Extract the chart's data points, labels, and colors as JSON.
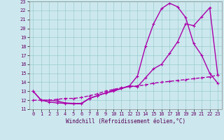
{
  "xlabel": "Windchill (Refroidissement éolien,°C)",
  "bg_color": "#cce8ee",
  "line_color": "#aa00aa",
  "grid_color": "#99cccc",
  "xlim": [
    -0.5,
    23.5
  ],
  "ylim": [
    11,
    23
  ],
  "xticks": [
    0,
    1,
    2,
    3,
    4,
    5,
    6,
    7,
    8,
    9,
    10,
    11,
    12,
    13,
    14,
    15,
    16,
    17,
    18,
    19,
    20,
    21,
    22,
    23
  ],
  "yticks": [
    11,
    12,
    13,
    14,
    15,
    16,
    17,
    18,
    19,
    20,
    21,
    22,
    23
  ],
  "line1_x": [
    0,
    1,
    2,
    3,
    4,
    5,
    6,
    7,
    8,
    9,
    10,
    11,
    12,
    13,
    14,
    15,
    16,
    17,
    18,
    19,
    20,
    21,
    22,
    23
  ],
  "line1_y": [
    13.0,
    12.0,
    11.8,
    11.7,
    11.65,
    11.6,
    11.6,
    12.2,
    12.5,
    12.8,
    13.1,
    13.3,
    13.6,
    14.7,
    18.0,
    20.5,
    22.2,
    22.8,
    22.4,
    21.2,
    18.3,
    17.0,
    15.0,
    13.9
  ],
  "line2_x": [
    0,
    1,
    2,
    3,
    4,
    5,
    6,
    7,
    8,
    9,
    10,
    11,
    12,
    13,
    14,
    15,
    16,
    17,
    18,
    19,
    20,
    21,
    22,
    23
  ],
  "line2_y": [
    13.0,
    12.0,
    12.0,
    11.9,
    11.7,
    11.65,
    11.65,
    12.2,
    12.5,
    12.8,
    13.0,
    13.3,
    13.6,
    13.5,
    14.5,
    15.5,
    16.0,
    17.2,
    18.5,
    20.5,
    20.3,
    21.3,
    22.3,
    14.8
  ],
  "line3_x": [
    0,
    1,
    2,
    3,
    4,
    5,
    6,
    7,
    8,
    9,
    10,
    11,
    12,
    13,
    14,
    15,
    16,
    17,
    18,
    19,
    20,
    21,
    22,
    23
  ],
  "line3_y": [
    12.0,
    12.0,
    12.0,
    12.1,
    12.2,
    12.2,
    12.3,
    12.5,
    12.7,
    13.0,
    13.2,
    13.4,
    13.5,
    13.6,
    13.7,
    13.9,
    14.0,
    14.1,
    14.2,
    14.3,
    14.4,
    14.5,
    14.6,
    14.8
  ],
  "marker_size": 2.5,
  "line_width": 1.0
}
